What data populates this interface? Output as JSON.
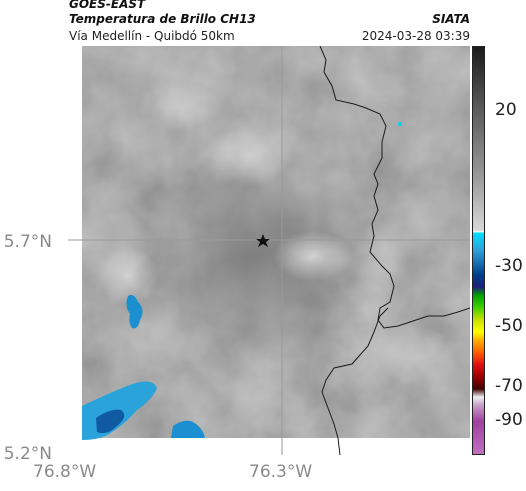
{
  "header": {
    "satellite": "GOES-EAST",
    "product": "Temperatura de Brillo CH13",
    "region": "Vía Medellín - Quibdó 50km",
    "agency": "SIATA",
    "timestamp": "2024-03-28 03:39"
  },
  "map": {
    "lat_labels": [
      "5.7°N",
      "5.2°N"
    ],
    "lon_labels": [
      "76.8°W",
      "76.3°W"
    ],
    "marker": "star-marker",
    "colors": {
      "background": "#8c8c8c",
      "cold_cloud": "#1e6fb0",
      "boundary": "#1a1a1a"
    }
  },
  "colorbar": {
    "ticks": [
      "20",
      "-30",
      "-50",
      "-70",
      "-90"
    ],
    "colors": [
      "#1a1a1a",
      "#808080",
      "#ffffff",
      "#00c8ff",
      "#003f8a",
      "#00c000",
      "#ffff00",
      "#ff6000",
      "#d00000",
      "#400000",
      "#c070c0"
    ]
  }
}
